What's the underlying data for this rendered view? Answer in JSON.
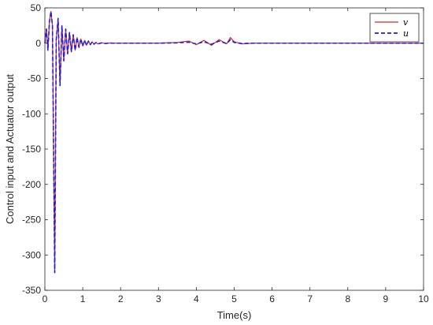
{
  "chart_data": {
    "type": "line",
    "xlabel": "Time(s)",
    "ylabel": "Control input and Actuator output",
    "xlim": [
      0,
      10
    ],
    "ylim": [
      -350,
      50
    ],
    "xticks": [
      0,
      1,
      2,
      3,
      4,
      5,
      6,
      7,
      8,
      9,
      10
    ],
    "yticks": [
      50,
      0,
      -50,
      -100,
      -150,
      -200,
      -250,
      -300,
      -350
    ],
    "grid": false,
    "legend_position": "top-right",
    "series": [
      {
        "name": "v",
        "color": "#d62728",
        "style": "solid",
        "x": [
          0,
          0.04,
          0.08,
          0.12,
          0.16,
          0.2,
          0.23,
          0.26,
          0.3,
          0.35,
          0.4,
          0.45,
          0.5,
          0.55,
          0.6,
          0.65,
          0.7,
          0.75,
          0.8,
          0.85,
          0.9,
          0.95,
          1.0,
          1.05,
          1.1,
          1.15,
          1.2,
          1.25,
          1.3,
          1.35,
          1.4,
          1.5,
          1.6,
          1.7,
          1.8,
          2.0,
          2.5,
          3.0,
          3.5,
          3.8,
          4.0,
          4.2,
          4.4,
          4.6,
          4.8,
          4.9,
          5.0,
          5.2,
          5.5,
          6.0,
          7.0,
          8.0,
          9.0,
          10.0
        ],
        "y": [
          0,
          20,
          -10,
          30,
          45,
          25,
          -150,
          -325,
          5,
          35,
          -60,
          25,
          -25,
          20,
          -15,
          15,
          -12,
          12,
          -10,
          8,
          -6,
          6,
          -4,
          4,
          -3,
          3,
          -2,
          2,
          -1.5,
          1,
          -1,
          0.5,
          -0.5,
          0.3,
          0,
          0,
          0,
          0,
          1,
          3,
          -2,
          4,
          -3,
          5,
          -1,
          8,
          2,
          -1,
          0,
          0,
          0,
          0,
          0,
          0
        ]
      },
      {
        "name": "u",
        "color": "#1f1fe0",
        "style": "dashed",
        "x": [
          0,
          0.04,
          0.08,
          0.12,
          0.16,
          0.2,
          0.23,
          0.26,
          0.3,
          0.35,
          0.4,
          0.45,
          0.5,
          0.55,
          0.6,
          0.65,
          0.7,
          0.75,
          0.8,
          0.85,
          0.9,
          0.95,
          1.0,
          1.05,
          1.1,
          1.15,
          1.2,
          1.25,
          1.3,
          1.35,
          1.4,
          1.5,
          1.6,
          1.7,
          1.8,
          2.0,
          2.5,
          3.0,
          3.5,
          3.8,
          4.0,
          4.2,
          4.4,
          4.6,
          4.8,
          4.9,
          5.0,
          5.2,
          5.5,
          6.0,
          7.0,
          8.0,
          9.0,
          10.0
        ],
        "y": [
          0,
          20,
          -10,
          30,
          45,
          25,
          -150,
          -325,
          5,
          35,
          -60,
          25,
          -25,
          20,
          -15,
          15,
          -12,
          12,
          -10,
          8,
          -6,
          6,
          -4,
          4,
          -3,
          3,
          -2,
          2,
          -1.5,
          1,
          -1,
          0.5,
          -0.5,
          0.3,
          0,
          0,
          0,
          0,
          0.5,
          1.5,
          -1,
          2,
          -1.5,
          3,
          -0.5,
          5,
          1,
          -0.5,
          0,
          0,
          0,
          0,
          0,
          0
        ]
      }
    ]
  }
}
